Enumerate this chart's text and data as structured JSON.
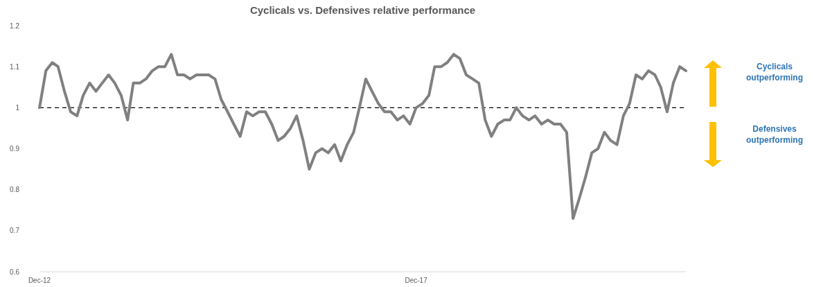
{
  "chart_data": {
    "type": "line",
    "title": "Cyclicals vs. Defensives relative performance",
    "x": [
      "2012-12",
      "2013-01",
      "2013-02",
      "2013-03",
      "2013-04",
      "2013-05",
      "2013-06",
      "2013-07",
      "2013-08",
      "2013-09",
      "2013-10",
      "2013-11",
      "2013-12",
      "2014-01",
      "2014-02",
      "2014-03",
      "2014-04",
      "2014-05",
      "2014-06",
      "2014-07",
      "2014-08",
      "2014-09",
      "2014-10",
      "2014-11",
      "2014-12",
      "2015-01",
      "2015-02",
      "2015-03",
      "2015-04",
      "2015-05",
      "2015-06",
      "2015-07",
      "2015-08",
      "2015-09",
      "2015-10",
      "2015-11",
      "2015-12",
      "2016-01",
      "2016-02",
      "2016-03",
      "2016-04",
      "2016-05",
      "2016-06",
      "2016-07",
      "2016-08",
      "2016-09",
      "2016-10",
      "2016-11",
      "2016-12",
      "2017-01",
      "2017-02",
      "2017-03",
      "2017-04",
      "2017-05",
      "2017-06",
      "2017-07",
      "2017-08",
      "2017-09",
      "2017-10",
      "2017-11",
      "2017-12",
      "2018-01",
      "2018-02",
      "2018-03",
      "2018-04",
      "2018-05",
      "2018-06",
      "2018-07",
      "2018-08",
      "2018-09",
      "2018-10",
      "2018-11",
      "2018-12",
      "2019-01",
      "2019-02",
      "2019-03",
      "2019-04",
      "2019-05",
      "2019-06",
      "2019-07",
      "2019-08",
      "2019-09",
      "2019-10",
      "2019-11",
      "2019-12",
      "2020-01",
      "2020-02",
      "2020-03",
      "2020-04",
      "2020-05",
      "2020-06",
      "2020-07",
      "2020-08",
      "2020-09",
      "2020-10",
      "2020-11",
      "2020-12",
      "2021-01",
      "2021-02",
      "2021-03",
      "2021-04",
      "2021-05",
      "2021-06",
      "2021-07"
    ],
    "series": [
      {
        "color": "#808080",
        "values": [
          1.0,
          1.09,
          1.11,
          1.1,
          1.04,
          0.99,
          0.98,
          1.03,
          1.06,
          1.04,
          1.06,
          1.08,
          1.06,
          1.03,
          0.97,
          1.06,
          1.06,
          1.07,
          1.09,
          1.1,
          1.1,
          1.13,
          1.08,
          1.08,
          1.07,
          1.08,
          1.08,
          1.08,
          1.07,
          1.02,
          0.99,
          0.96,
          0.93,
          0.99,
          0.98,
          0.99,
          0.99,
          0.96,
          0.92,
          0.93,
          0.95,
          0.98,
          0.92,
          0.85,
          0.89,
          0.9,
          0.89,
          0.91,
          0.87,
          0.91,
          0.94,
          1.0,
          1.07,
          1.04,
          1.01,
          0.99,
          0.99,
          0.97,
          0.98,
          0.96,
          1.0,
          1.01,
          1.03,
          1.1,
          1.1,
          1.11,
          1.13,
          1.12,
          1.08,
          1.07,
          1.06,
          0.97,
          0.93,
          0.96,
          0.97,
          0.97,
          1.0,
          0.98,
          0.97,
          0.98,
          0.96,
          0.97,
          0.96,
          0.96,
          0.94,
          0.73,
          0.78,
          0.83,
          0.89,
          0.9,
          0.94,
          0.92,
          0.91,
          0.98,
          1.01,
          1.08,
          1.07,
          1.09,
          1.08,
          1.05,
          0.99,
          1.06,
          1.1,
          1.09
        ]
      }
    ],
    "xlim": [
      "2012-12",
      "2021-07"
    ],
    "xticks": [
      {
        "value": "2012-12",
        "label": "Dec-12"
      },
      {
        "value": "2017-12",
        "label": "Dec-17"
      }
    ],
    "ylim": [
      0.6,
      1.2
    ],
    "yticks": [
      0.6,
      0.7,
      0.8,
      0.9,
      1,
      1.1,
      1.2
    ],
    "ref_lines": [
      {
        "axis": "y",
        "value": 1,
        "color": "#000000",
        "line_style": "dashed"
      }
    ],
    "annotations": [
      "Cyclicals outperforming",
      "Defensives outperforming"
    ],
    "grid": false,
    "marker": "none",
    "line_style": "solid"
  }
}
